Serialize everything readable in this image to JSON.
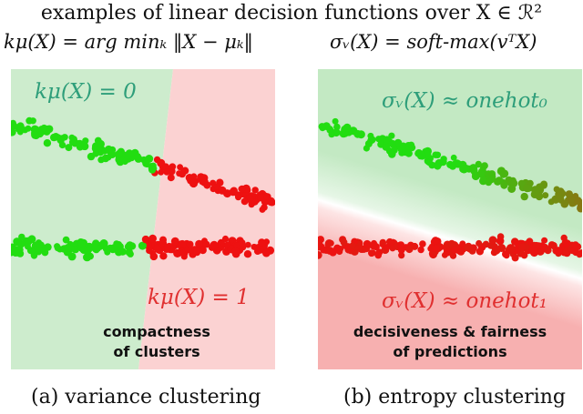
{
  "title": "examples of linear decision functions over X ∈ ℛ²",
  "panel_a": {
    "heading": "kμ(X) = arg minₖ ‖X − μₖ‖",
    "label_top": "kμ(X) = 0",
    "label_bottom": "kμ(X) = 1",
    "note_line1": "compactness",
    "note_line2": "of clusters",
    "caption": "(a) variance clustering"
  },
  "panel_b": {
    "heading": "σᵥ(X) = soft-max(vᵀX)",
    "label_top": "σᵥ(X) ≈ onehot₀",
    "label_bottom": "σᵥ(X) ≈ onehot₁",
    "note_line1": "decisiveness & fairness",
    "note_line2": "of predictions",
    "caption": "(b) entropy clustering"
  },
  "colors": {
    "green_region": "#cdeccd",
    "red_region": "#fbd2d2",
    "green_label": "#2e9e7a",
    "red_label": "#e03030",
    "green_point": "#22dd11",
    "red_point": "#ee1111"
  }
}
